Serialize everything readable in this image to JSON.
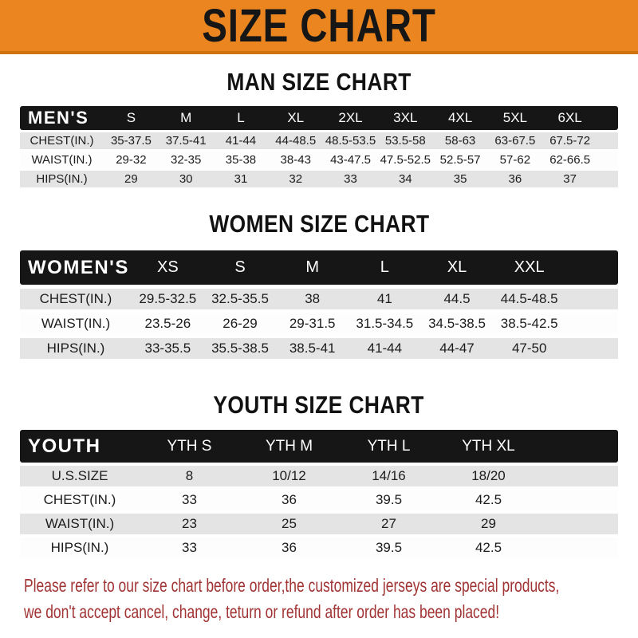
{
  "banner": {
    "title": "SIZE CHART"
  },
  "colors": {
    "banner_orange": "#EA8520",
    "header_bar_black": "#161616",
    "row_gray": "#E4E4E4",
    "row_white": "#FDFDFD",
    "note_red": "#A13434"
  },
  "chart_data": [
    {
      "type": "table",
      "title": "MAN SIZE CHART",
      "corner_label": "MEN'S",
      "columns": [
        "S",
        "M",
        "L",
        "XL",
        "2XL",
        "3XL",
        "4XL",
        "5XL",
        "6XL"
      ],
      "rows": [
        {
          "label": "CHEST(IN.)",
          "values": [
            "35-37.5",
            "37.5-41",
            "41-44",
            "44-48.5",
            "48.5-53.5",
            "53.5-58",
            "58-63",
            "63-67.5",
            "67.5-72"
          ]
        },
        {
          "label": "WAIST(IN.)",
          "values": [
            "29-32",
            "32-35",
            "35-38",
            "38-43",
            "43-47.5",
            "47.5-52.5",
            "52.5-57",
            "57-62",
            "62-66.5"
          ]
        },
        {
          "label": "HIPS(IN.)",
          "values": [
            "29",
            "30",
            "31",
            "32",
            "33",
            "34",
            "35",
            "36",
            "37"
          ]
        }
      ]
    },
    {
      "type": "table",
      "title": "WOMEN SIZE CHART",
      "corner_label": "WOMEN'S",
      "columns": [
        "XS",
        "S",
        "M",
        "L",
        "XL",
        "XXL"
      ],
      "rows": [
        {
          "label": "CHEST(IN.)",
          "values": [
            "29.5-32.5",
            "32.5-35.5",
            "38",
            "41",
            "44.5",
            "44.5-48.5"
          ]
        },
        {
          "label": "WAIST(IN.)",
          "values": [
            "23.5-26",
            "26-29",
            "29-31.5",
            "31.5-34.5",
            "34.5-38.5",
            "38.5-42.5"
          ]
        },
        {
          "label": "HIPS(IN.)",
          "values": [
            "33-35.5",
            "35.5-38.5",
            "38.5-41",
            "41-44",
            "44-47",
            "47-50"
          ]
        }
      ]
    },
    {
      "type": "table",
      "title": "YOUTH SIZE CHART",
      "corner_label": "YOUTH",
      "columns": [
        "YTH S",
        "YTH M",
        "YTH L",
        "YTH XL"
      ],
      "rows": [
        {
          "label": "U.S.SIZE",
          "values": [
            "8",
            "10/12",
            "14/16",
            "18/20"
          ]
        },
        {
          "label": "CHEST(IN.)",
          "values": [
            "33",
            "36",
            "39.5",
            "42.5"
          ]
        },
        {
          "label": "WAIST(IN.)",
          "values": [
            "23",
            "25",
            "27",
            "29"
          ]
        },
        {
          "label": "HIPS(IN.)",
          "values": [
            "33",
            "36",
            "39.5",
            "42.5"
          ]
        }
      ]
    }
  ],
  "footer": {
    "line1": "Please refer to our size chart before order,the customized jerseys are special products,",
    "line2": "we don't accept cancel, change, teturn or refund after order has been placed!"
  }
}
